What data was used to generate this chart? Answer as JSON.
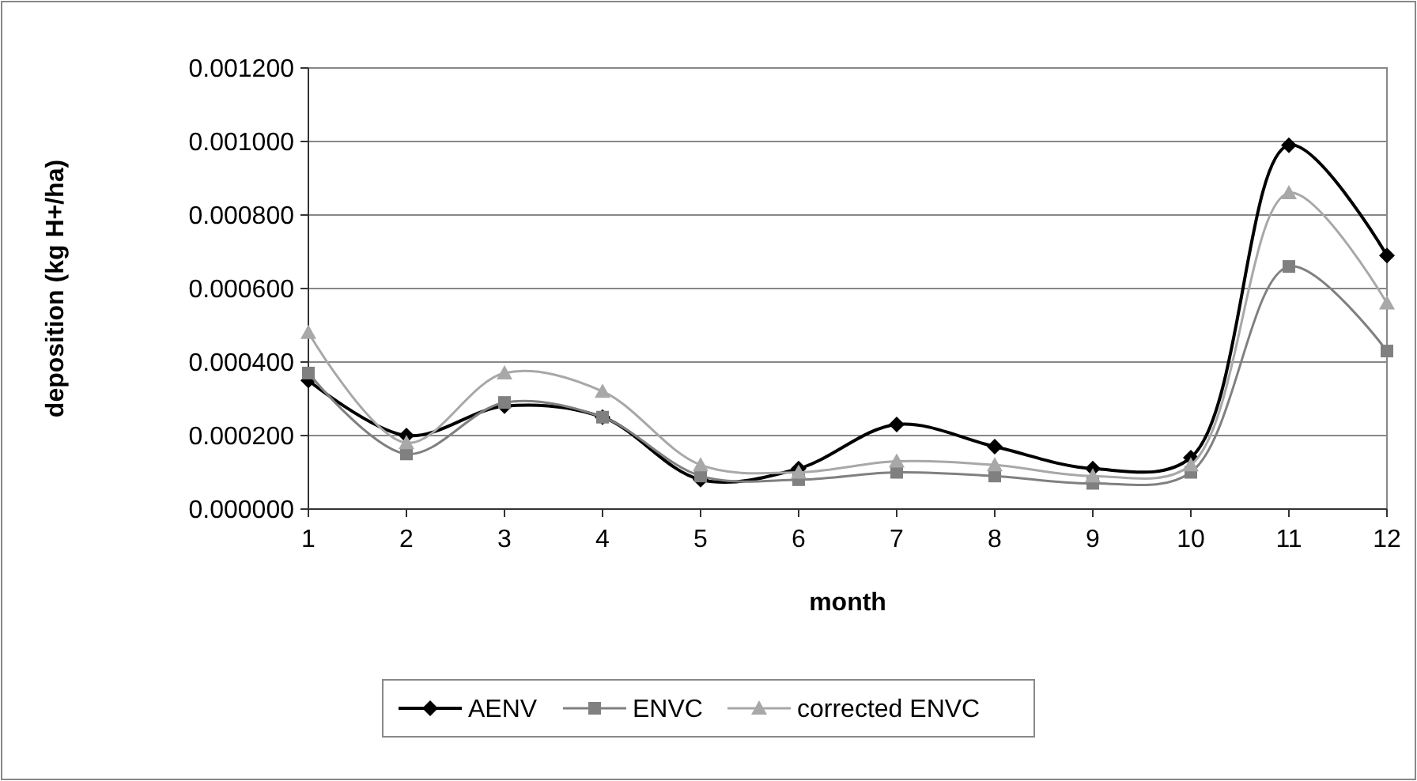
{
  "chart_data": {
    "type": "line",
    "xlabel": "month",
    "ylabel": "deposition (kg H+/ha)",
    "x": [
      1,
      2,
      3,
      4,
      5,
      6,
      7,
      8,
      9,
      10,
      11,
      12
    ],
    "xlim": [
      1,
      12
    ],
    "xticks": [
      1,
      2,
      3,
      4,
      5,
      6,
      7,
      8,
      9,
      10,
      11,
      12
    ],
    "ylim": [
      0,
      0.0012
    ],
    "yticks": [
      {
        "value": 0,
        "label": "0.000000"
      },
      {
        "value": 0.0002,
        "label": "0.000200"
      },
      {
        "value": 0.0004,
        "label": "0.000400"
      },
      {
        "value": 0.0006,
        "label": "0.000600"
      },
      {
        "value": 0.0008,
        "label": "0.000800"
      },
      {
        "value": 0.001,
        "label": "0.001000"
      },
      {
        "value": 0.0012,
        "label": "0.001200"
      }
    ],
    "grid": "y",
    "legend": "bottom",
    "series": [
      {
        "name": "AENV",
        "color": "#000000",
        "marker": "diamond",
        "values": [
          0.00035,
          0.0002,
          0.00028,
          0.00025,
          8e-05,
          0.00011,
          0.00023,
          0.00017,
          0.00011,
          0.00014,
          0.00099,
          0.00069
        ]
      },
      {
        "name": "ENVC",
        "color": "#808080",
        "marker": "square",
        "values": [
          0.00037,
          0.00015,
          0.00029,
          0.00025,
          9e-05,
          8e-05,
          0.0001,
          9e-05,
          7e-05,
          0.0001,
          0.00066,
          0.00043
        ]
      },
      {
        "name": "corrected ENVC",
        "color": "#a8a8a8",
        "marker": "triangle",
        "values": [
          0.00048,
          0.00018,
          0.00037,
          0.00032,
          0.00012,
          0.0001,
          0.00013,
          0.00012,
          9e-05,
          0.00012,
          0.00086,
          0.00056
        ]
      }
    ]
  }
}
